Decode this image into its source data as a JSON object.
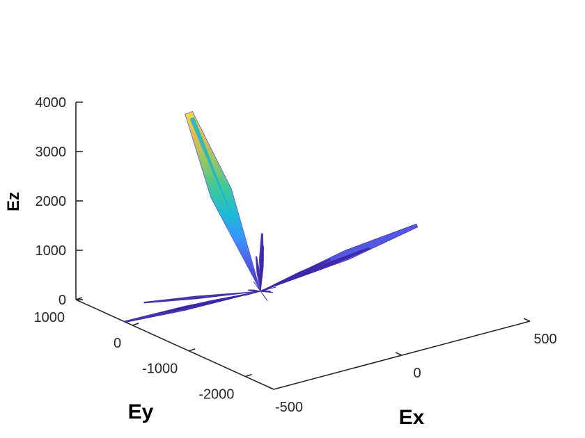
{
  "chart_data": {
    "type": "3d-surface",
    "xlabel": "Ex",
    "ylabel": "Ey",
    "zlabel": "Ez",
    "xlabel_color": "#ff0000",
    "ylabel_color": "#0000ff",
    "zlabel_color": "#262626",
    "xlim": [
      -500,
      500
    ],
    "ylim": [
      -2500,
      1000
    ],
    "zlim": [
      0,
      4000
    ],
    "x_ticks": [
      {
        "value": -500,
        "label": "-500"
      },
      {
        "value": 0,
        "label": "0"
      },
      {
        "value": 500,
        "label": "500"
      }
    ],
    "y_ticks": [
      {
        "value": 1000,
        "label": "1000"
      },
      {
        "value": 0,
        "label": "0"
      },
      {
        "value": -1000,
        "label": "-1000"
      },
      {
        "value": -2000,
        "label": "-2000"
      }
    ],
    "z_ticks": [
      {
        "value": 0,
        "label": "0"
      },
      {
        "value": 1000,
        "label": "1000"
      },
      {
        "value": 2000,
        "label": "2000"
      },
      {
        "value": 3000,
        "label": "3000"
      },
      {
        "value": 4000,
        "label": "4000"
      }
    ],
    "colormap": "parula",
    "colormap_stops": [
      "#3e26a8",
      "#4a50e1",
      "#2f8cfe",
      "#13b6d3",
      "#34c598",
      "#8dc45a",
      "#e2b842",
      "#f9d92d"
    ],
    "center": {
      "x": 0,
      "y": 0,
      "z": 0
    },
    "lobes": [
      {
        "x": -280,
        "y": 0,
        "z": 4000,
        "width": 16
      },
      {
        "x": 500,
        "y": -500,
        "z": 900,
        "width": 7
      },
      {
        "x": 380,
        "y": -200,
        "z": 450,
        "width": 3
      },
      {
        "x": 250,
        "y": -100,
        "z": 350,
        "width": 2
      },
      {
        "x": -420,
        "y": 500,
        "z": -300,
        "width": 3
      },
      {
        "x": -280,
        "y": 380,
        "z": -220,
        "width": 2
      },
      {
        "x": -300,
        "y": 700,
        "z": -180,
        "width": 2
      },
      {
        "x": -5,
        "y": -50,
        "z": 1200,
        "width": 3
      },
      {
        "x": 10,
        "y": 0,
        "z": 900,
        "width": 2
      },
      {
        "x": -10,
        "y": 30,
        "z": 700,
        "width": 2
      },
      {
        "x": 40,
        "y": 0,
        "z": -60,
        "width": 1
      },
      {
        "x": -40,
        "y": 30,
        "z": 60,
        "width": 1
      },
      {
        "x": 30,
        "y": 40,
        "z": -20,
        "width": 1
      }
    ],
    "grid": false
  }
}
